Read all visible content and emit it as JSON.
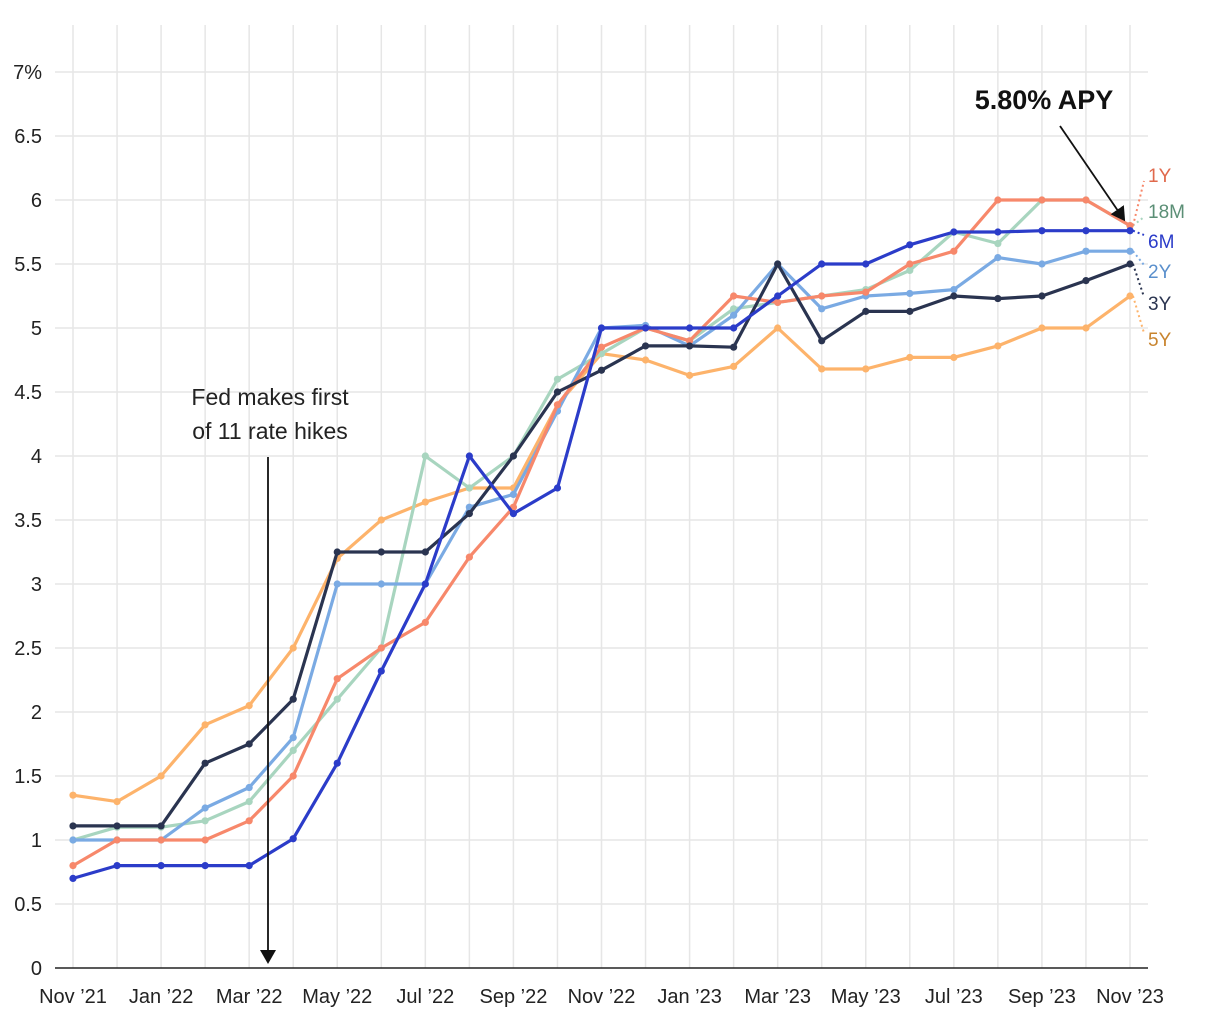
{
  "chart_data": {
    "type": "line",
    "title": "",
    "xlabel": "",
    "ylabel": "",
    "ylim": [
      0,
      7
    ],
    "ytick_labels": [
      "0",
      "0.5",
      "1",
      "1.5",
      "2",
      "2.5",
      "3",
      "3.5",
      "4",
      "4.5",
      "5",
      "5.5",
      "6",
      "6.5",
      "7%"
    ],
    "xtick_labels": [
      "Nov ’21",
      "Jan ’22",
      "Mar ’22",
      "May ’22",
      "Jul ’22",
      "Sep ’22",
      "Nov ’22",
      "Jan ’23",
      "Mar ’23",
      "May ’23",
      "Jul ’23",
      "Sep ’23",
      "Nov ’23"
    ],
    "x": [
      "Nov 2021",
      "Dec 2021",
      "Jan 2022",
      "Feb 2022",
      "Mar 2022",
      "Apr 2022",
      "May 2022",
      "Jun 2022",
      "Jul 2022",
      "Aug 2022",
      "Sep 2022",
      "Oct 2022",
      "Nov 2022",
      "Dec 2022",
      "Jan 2023",
      "Feb 2023",
      "Mar 2023",
      "Apr 2023",
      "May 2023",
      "Jun 2023",
      "Jul 2023",
      "Aug 2023",
      "Sep 2023",
      "Oct 2023",
      "Nov 2023"
    ],
    "grid": true,
    "series": [
      {
        "name": "5Y",
        "color": "#fdb36b",
        "label_color": "#c8842e",
        "values": [
          1.35,
          1.3,
          1.5,
          1.9,
          2.05,
          2.5,
          3.2,
          3.5,
          3.64,
          3.75,
          3.75,
          4.4,
          4.8,
          4.75,
          4.63,
          4.7,
          5.0,
          4.68,
          4.68,
          4.77,
          4.77,
          4.86,
          5.0,
          5.0,
          5.25
        ]
      },
      {
        "name": "18M",
        "color": "#a8d5bf",
        "label_color": "#5b8f76",
        "values": [
          1.0,
          1.1,
          1.1,
          1.15,
          1.3,
          1.7,
          2.1,
          2.5,
          4.0,
          3.75,
          4.0,
          4.6,
          4.8,
          5.0,
          4.9,
          5.15,
          5.2,
          5.25,
          5.3,
          5.45,
          5.75,
          5.66,
          6.0,
          6.0,
          5.8
        ]
      },
      {
        "name": "2Y",
        "color": "#7aaae3",
        "label_color": "#5a8fcc",
        "values": [
          1.0,
          1.0,
          1.0,
          1.25,
          1.41,
          1.8,
          3.0,
          3.0,
          3.0,
          3.6,
          3.7,
          4.35,
          5.0,
          5.02,
          4.86,
          5.1,
          5.5,
          5.15,
          5.25,
          5.27,
          5.3,
          5.55,
          5.5,
          5.6,
          5.6
        ]
      },
      {
        "name": "1Y",
        "color": "#f7886b",
        "label_color": "#e0694c",
        "values": [
          0.8,
          1.0,
          1.0,
          1.0,
          1.15,
          1.5,
          2.26,
          2.5,
          2.7,
          3.21,
          3.6,
          4.4,
          4.85,
          5.0,
          4.9,
          5.25,
          5.2,
          5.25,
          5.28,
          5.5,
          5.6,
          6.0,
          6.0,
          6.0,
          5.8
        ]
      },
      {
        "name": "3Y",
        "color": "#2a3450",
        "label_color": "#2a3450",
        "values": [
          1.11,
          1.11,
          1.11,
          1.6,
          1.75,
          2.1,
          3.25,
          3.25,
          3.25,
          3.55,
          4.0,
          4.5,
          4.67,
          4.86,
          4.86,
          4.85,
          5.5,
          4.9,
          5.13,
          5.13,
          5.25,
          5.23,
          5.25,
          5.37,
          5.5
        ]
      },
      {
        "name": "6M",
        "color": "#2b3cc9",
        "label_color": "#2b3cc9",
        "values": [
          0.7,
          0.8,
          0.8,
          0.8,
          0.8,
          1.01,
          1.6,
          2.32,
          3.0,
          4.0,
          3.55,
          3.75,
          5.0,
          5.0,
          5.0,
          5.0,
          5.25,
          5.5,
          5.5,
          5.65,
          5.75,
          5.75,
          5.76,
          5.76,
          5.76
        ]
      }
    ],
    "annotations": [
      {
        "text_lines": [
          "Fed makes first",
          "of 11 rate hikes"
        ],
        "x_index": 4.5
      },
      {
        "text": "5.80% APY",
        "x_index": 24,
        "y": 5.8
      }
    ]
  }
}
